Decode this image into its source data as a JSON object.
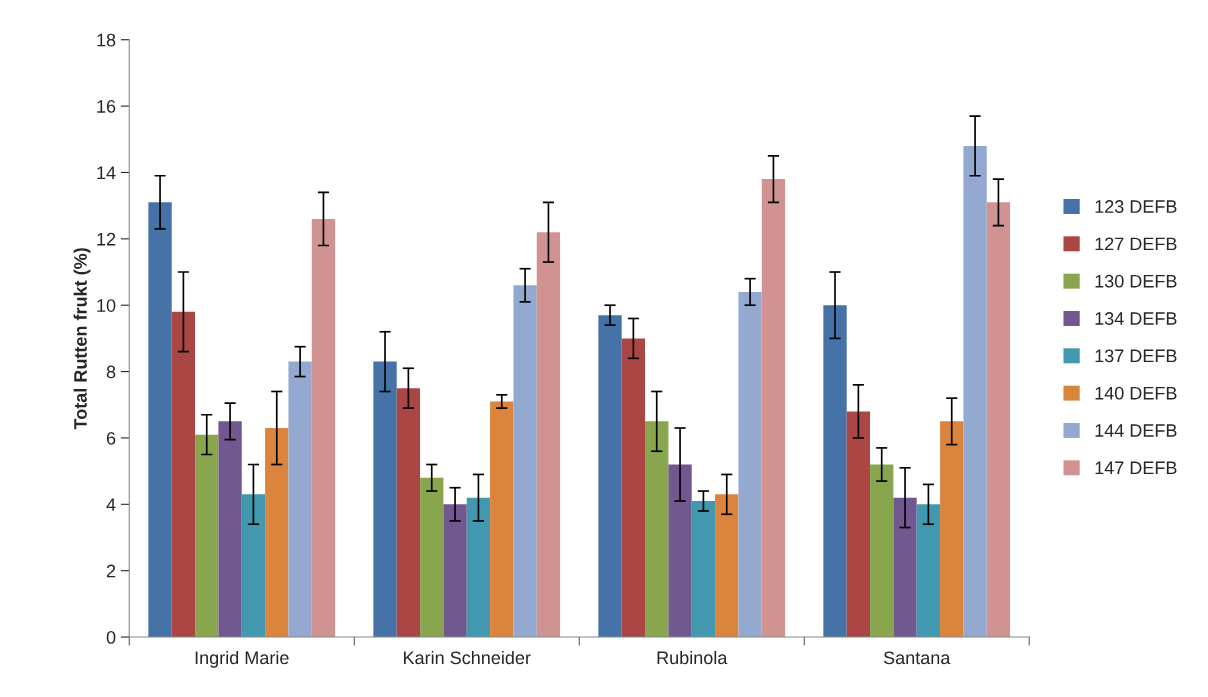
{
  "chart_data": {
    "type": "bar",
    "ylabel": "Total Rutten frukt (%)",
    "categories": [
      "Ingrid Marie",
      "Karin Schneider",
      "Rubinola",
      "Santana"
    ],
    "series": [
      {
        "name": "123 DEFB",
        "color": "#4572a7",
        "values": [
          13.1,
          8.3,
          9.7,
          10.0
        ],
        "errors": [
          0.8,
          0.9,
          0.3,
          1.0
        ]
      },
      {
        "name": "127 DEFB",
        "color": "#aa4643",
        "values": [
          9.8,
          7.5,
          9.0,
          6.8
        ],
        "errors": [
          1.2,
          0.6,
          0.6,
          0.8
        ]
      },
      {
        "name": "130 DEFB",
        "color": "#89a54e",
        "values": [
          6.1,
          4.8,
          6.5,
          5.2
        ],
        "errors": [
          0.6,
          0.4,
          0.9,
          0.5
        ]
      },
      {
        "name": "134 DEFB",
        "color": "#71588f",
        "values": [
          6.5,
          4.0,
          5.2,
          4.2
        ],
        "errors": [
          0.55,
          0.5,
          1.1,
          0.9
        ]
      },
      {
        "name": "137 DEFB",
        "color": "#4198af",
        "values": [
          4.3,
          4.2,
          4.1,
          4.0
        ],
        "errors": [
          0.9,
          0.7,
          0.3,
          0.6
        ]
      },
      {
        "name": "140 DEFB",
        "color": "#db843d",
        "values": [
          6.3,
          7.1,
          4.3,
          6.5
        ],
        "errors": [
          1.1,
          0.2,
          0.6,
          0.7
        ]
      },
      {
        "name": "144 DEFB",
        "color": "#93a9cf",
        "values": [
          8.3,
          10.6,
          10.4,
          14.8
        ],
        "errors": [
          0.45,
          0.5,
          0.4,
          0.9
        ]
      },
      {
        "name": "147 DEFB",
        "color": "#d19392",
        "values": [
          12.6,
          12.2,
          13.8,
          13.1
        ],
        "errors": [
          0.8,
          0.9,
          0.7,
          0.7
        ]
      }
    ],
    "ylim": [
      0,
      18
    ],
    "yticks": [
      0,
      2,
      4,
      6,
      8,
      10,
      12,
      14,
      16,
      18
    ],
    "grid": false,
    "legend": "right"
  }
}
